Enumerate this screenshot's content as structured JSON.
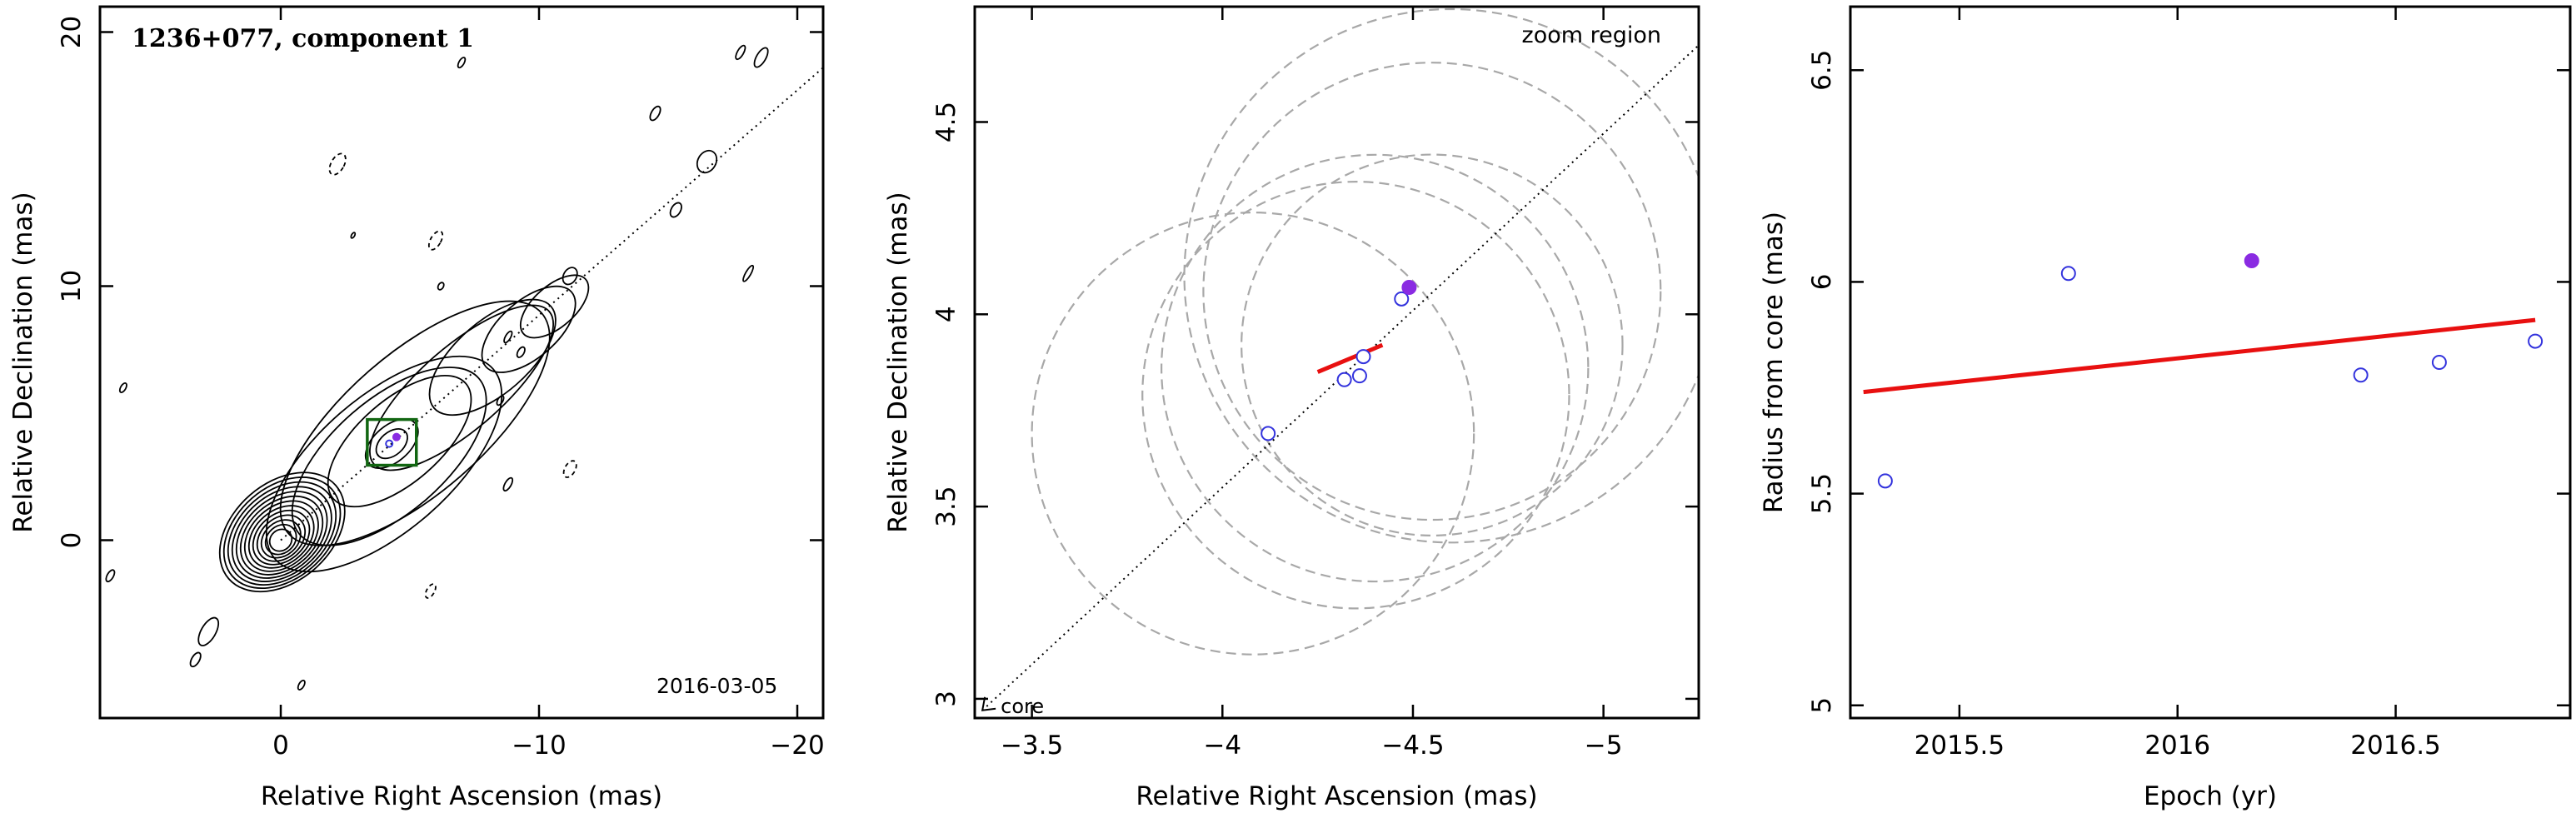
{
  "chart_data": [
    {
      "type": "contour",
      "title": "1236+077, component 1",
      "date_label": "2016-03-05",
      "xlabel": "Relative Right Ascension (mas)",
      "ylabel": "Relative Declination (mas)",
      "xlim": [
        7,
        -21
      ],
      "ylim": [
        -7,
        21
      ],
      "xticks": [
        0,
        -10,
        -20
      ],
      "yticks": [
        0,
        10,
        20
      ],
      "contour_center": [
        0,
        0
      ],
      "jet_axis_line": {
        "from": [
          0,
          0
        ],
        "to": [
          -21,
          18.6
        ]
      },
      "zoom_box": {
        "x": [
          -3.35,
          -5.25
        ],
        "y": [
          2.95,
          4.75
        ]
      },
      "component_points": [
        {
          "x": -4.48,
          "y": 4.06,
          "filled": true
        },
        {
          "x": -4.2,
          "y": 3.8,
          "filled": false
        }
      ]
    },
    {
      "type": "scatter",
      "title": "zoom region",
      "annotation": "core",
      "xlabel": "Relative Right Ascension (mas)",
      "ylabel": "Relative Declination (mas)",
      "xlim": [
        -3.35,
        -5.25
      ],
      "ylim": [
        2.95,
        4.8
      ],
      "xticks": [
        -3.5,
        -4,
        -4.5,
        -5
      ],
      "yticks": [
        3,
        3.5,
        4,
        4.5
      ],
      "points": [
        {
          "x": -4.12,
          "y": 3.69,
          "filled": false
        },
        {
          "x": -4.32,
          "y": 3.83,
          "filled": false
        },
        {
          "x": -4.36,
          "y": 3.84,
          "filled": false
        },
        {
          "x": -4.37,
          "y": 3.89,
          "filled": false
        },
        {
          "x": -4.47,
          "y": 4.04,
          "filled": false
        },
        {
          "x": -4.49,
          "y": 4.07,
          "filled": true
        }
      ],
      "fit_line": {
        "x": [
          -4.25,
          -4.42
        ],
        "y": [
          3.85,
          3.92
        ]
      },
      "jet_axis_line": {
        "from": [
          -3.37,
          2.97
        ],
        "to": [
          -5.25,
          4.7
        ]
      },
      "beam_circles": [
        {
          "x": -4.08,
          "y": 3.69,
          "r": 0.58
        },
        {
          "x": -4.35,
          "y": 3.79,
          "r": 0.56
        },
        {
          "x": -4.4,
          "y": 3.86,
          "r": 0.56
        },
        {
          "x": -4.55,
          "y": 3.92,
          "r": 0.5
        },
        {
          "x": -4.55,
          "y": 4.06,
          "r": 0.6
        },
        {
          "x": -4.6,
          "y": 4.1,
          "r": 0.7
        }
      ]
    },
    {
      "type": "scatter",
      "xlabel": "Epoch (yr)",
      "ylabel": "Radius from core (mas)",
      "xlim": [
        2015.25,
        2016.9
      ],
      "ylim": [
        4.97,
        6.65
      ],
      "xticks": [
        2015.5,
        2016,
        2016.5
      ],
      "yticks": [
        5,
        5.5,
        6,
        6.5
      ],
      "points": [
        {
          "x": 2015.33,
          "y": 5.53,
          "filled": false
        },
        {
          "x": 2015.75,
          "y": 6.02,
          "filled": false
        },
        {
          "x": 2016.17,
          "y": 6.05,
          "filled": true
        },
        {
          "x": 2016.42,
          "y": 5.78,
          "filled": false
        },
        {
          "x": 2016.6,
          "y": 5.81,
          "filled": false
        },
        {
          "x": 2016.82,
          "y": 5.86,
          "filled": false
        }
      ],
      "fit_line": {
        "x": [
          2015.28,
          2016.82
        ],
        "y": [
          5.74,
          5.91
        ]
      }
    }
  ],
  "colors": {
    "open_point": "#3333dd",
    "filled_point": "#8a2be2",
    "fit_line": "#e81010",
    "zoom_box": "#116611",
    "beam_circle": "#a8a8a8",
    "axis": "#000000"
  }
}
